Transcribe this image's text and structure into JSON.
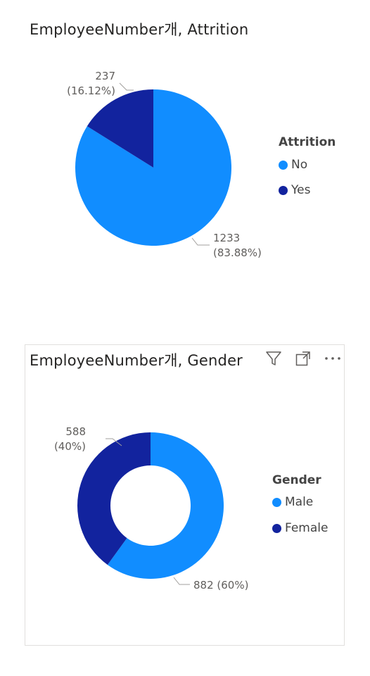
{
  "colors": {
    "primary": "#118dff",
    "secondary": "#12239e",
    "leader": "#a19f9d"
  },
  "visual1": {
    "title": "EmployeeNumber개, Attrition",
    "legend": {
      "title": "Attrition",
      "items": [
        "No",
        "Yes"
      ]
    }
  },
  "visual2": {
    "title": "EmployeeNumber개, Gender",
    "legend": {
      "title": "Gender",
      "items": [
        "Male",
        "Female"
      ]
    },
    "header_icons": [
      "filter-icon",
      "focus-mode-icon",
      "more-options-icon"
    ]
  },
  "chart_data": [
    {
      "type": "pie",
      "title": "EmployeeNumber개, Attrition",
      "legend_title": "Attrition",
      "legend_position": "right",
      "slices": [
        {
          "label": "No",
          "value": 1233,
          "percent": "83.88%",
          "data_label": [
            "1233",
            "(83.88%)"
          ],
          "color": "#118dff"
        },
        {
          "label": "Yes",
          "value": 237,
          "percent": "16.12%",
          "data_label": [
            "237",
            "(16.12%)"
          ],
          "color": "#12239e"
        }
      ]
    },
    {
      "type": "pie",
      "subtype": "donut",
      "title": "EmployeeNumber개, Gender",
      "legend_title": "Gender",
      "legend_position": "right",
      "slices": [
        {
          "label": "Male",
          "value": 882,
          "percent": "60%",
          "data_label": [
            "882 (60%)"
          ],
          "color": "#118dff"
        },
        {
          "label": "Female",
          "value": 588,
          "percent": "40%",
          "data_label": [
            "588",
            "(40%)"
          ],
          "color": "#12239e"
        }
      ]
    }
  ]
}
